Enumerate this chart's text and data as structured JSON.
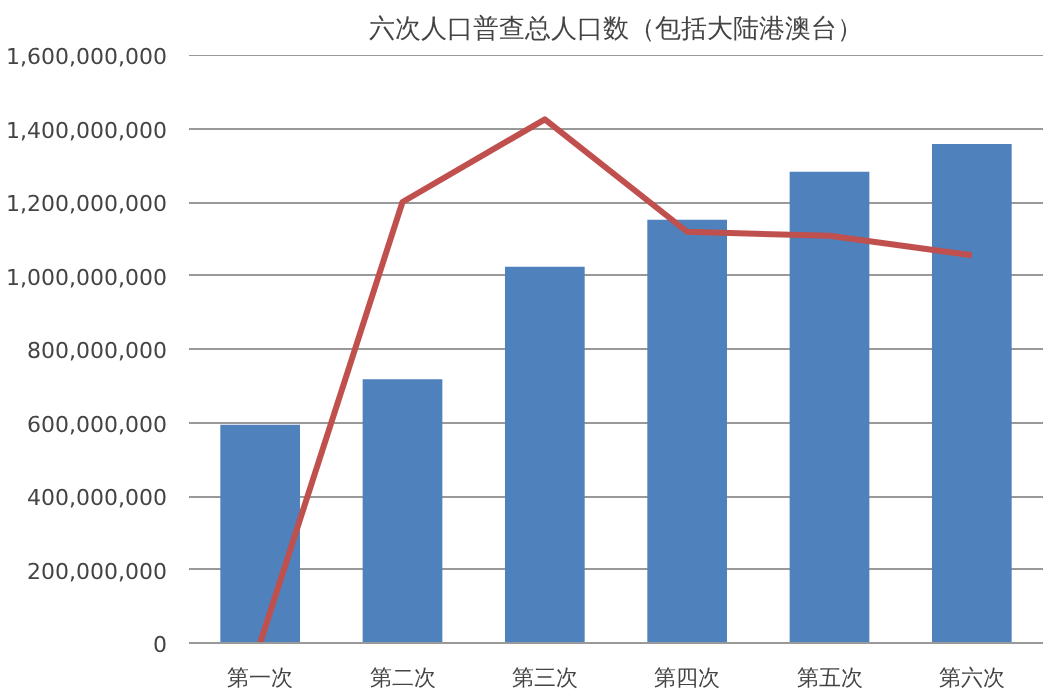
{
  "chart_data": {
    "type": "bar",
    "title": "六次人口普查总人口数（包括大陆港澳台）",
    "categories": [
      "第一次",
      "第二次",
      "第三次",
      "第四次",
      "第五次",
      "第六次"
    ],
    "series": [
      {
        "color": "#4f81bd",
        "values": [
          594000000,
          718000000,
          1024000000,
          1152000000,
          1282000000,
          1358000000
        ]
      },
      {
        "type": "line",
        "color": "#c0504d",
        "values": [
          0,
          1200000000,
          1425000000,
          1119000000,
          1108000000,
          1055000000
        ]
      }
    ],
    "ylim": [
      0,
      1600000000
    ],
    "yticks": [
      0,
      {
        "value": 200000000,
        "label": "200,000,000"
      },
      {
        "value": 400000000,
        "label": "400,000,000"
      },
      {
        "value": 600000000,
        "label": "600,000,000"
      },
      {
        "value": 800000000,
        "label": "800,000,000"
      },
      {
        "value": 1000000000,
        "label": "1,000,000,000"
      },
      {
        "value": 1200000000,
        "label": "1,200,000,000"
      },
      {
        "value": 1400000000,
        "label": "1,400,000,000"
      },
      {
        "value": 1600000000,
        "label": "1,600,000,000"
      }
    ],
    "grid": "y",
    "marker": "none",
    "line_style": "solid"
  }
}
